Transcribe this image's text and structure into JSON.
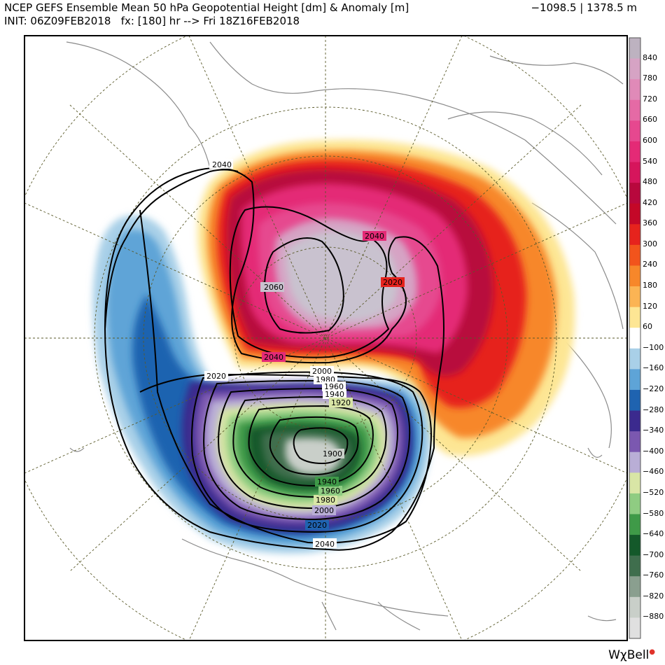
{
  "header": {
    "title": "NCEP GEFS Ensemble Mean 50 hPa Geopotential Height [dm] & Anomaly [m]",
    "init": "INIT: 06Z09FEB2018   fx: [180] hr --> Fri 18Z16FEB2018",
    "range": "−1098.5 | 1378.5 m"
  },
  "contour_labels": {
    "c2060": "2060",
    "c2040a": "2040",
    "c2040b": "2040",
    "c2040c": "2040",
    "c2040d": "2040",
    "c2020a": "2020",
    "c2020b": "2020",
    "c2020c": "2020",
    "c2000a": "2000",
    "c2000b": "2000",
    "c1980a": "1980",
    "c1980b": "1980",
    "c1960a": "1960",
    "c1960b": "1960",
    "c1940a": "1940",
    "c1940b": "1940",
    "c1920": "1920",
    "c1900": "1900"
  },
  "colorbar": {
    "labels": [
      "840",
      "780",
      "720",
      "660",
      "600",
      "540",
      "480",
      "420",
      "360",
      "300",
      "240",
      "180",
      "120",
      "60",
      "−100",
      "−160",
      "−220",
      "−280",
      "−340",
      "−400",
      "−460",
      "−520",
      "−580",
      "−640",
      "−700",
      "−760",
      "−820",
      "−880"
    ],
    "colors": [
      "#bdb2c0",
      "#d6a3c4",
      "#e08ab8",
      "#e56aa5",
      "#e6488f",
      "#e42a76",
      "#d6155c",
      "#b8083d",
      "#c40828",
      "#e6231d",
      "#f2541c",
      "#f7872a",
      "#fbb454",
      "#fde694",
      "#ffffff",
      "#a9d0e8",
      "#5ea4d7",
      "#1f63b0",
      "#3b2a8e",
      "#7b58b0",
      "#b9aed6",
      "#d9e6a6",
      "#8fcc82",
      "#3f9a48",
      "#14592a",
      "#3f6e4d",
      "#8a9f8f",
      "#c9cfc9",
      "#e0e0e0"
    ]
  },
  "brand": "WχBell"
}
